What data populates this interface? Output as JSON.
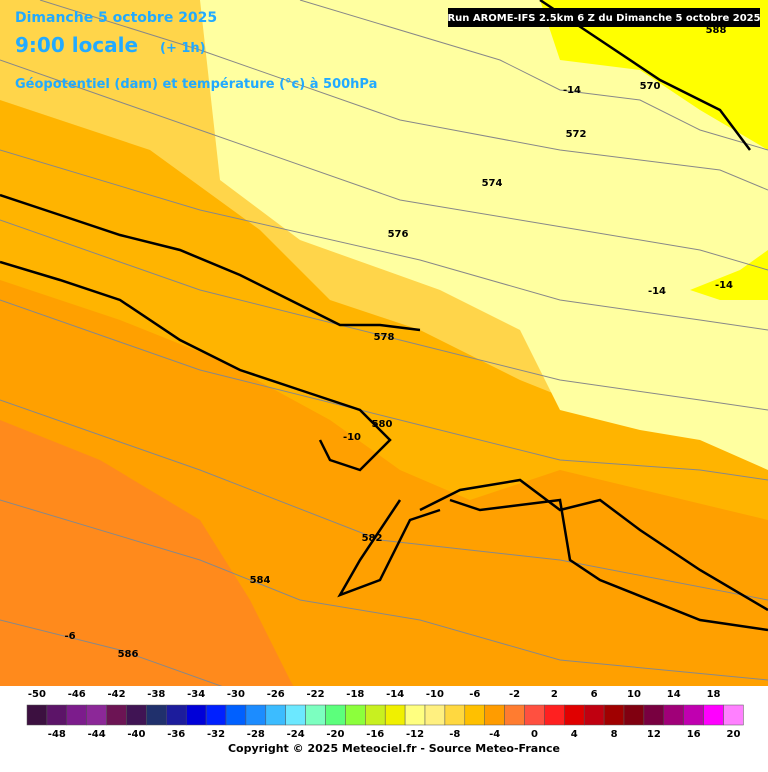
{
  "header": {
    "date": "Dimanche 5 octobre 2025",
    "time": "9:00 locale",
    "lead": "(+ 1h)",
    "field": "Géopotentiel (dam) et température (°c) à 500hPa",
    "run": "Run AROME-IFS 2.5km 6 Z du Dimanche 5 octobre 2025"
  },
  "map": {
    "labels": [
      "588",
      "-14",
      "570",
      "572",
      "574",
      "576",
      "-14",
      "-14",
      "578",
      "580",
      "-10",
      "582",
      "584",
      "-6",
      "586"
    ]
  },
  "legend": {
    "values": [
      -50,
      -48,
      -46,
      -44,
      -42,
      -40,
      -38,
      -36,
      -34,
      -32,
      -30,
      -28,
      -26,
      -24,
      -22,
      -20,
      -18,
      -16,
      -14,
      -12,
      -10,
      -8,
      -6,
      -4,
      -2,
      0,
      2,
      4,
      6,
      8,
      10,
      12,
      14,
      16,
      18,
      20
    ],
    "colors": [
      "#3c1040",
      "#5c1468",
      "#7c1c8c",
      "#8c2898",
      "#6c1454",
      "#401454",
      "#20306c",
      "#1c1c9c",
      "#0000d8",
      "#0020ff",
      "#0060ff",
      "#1c8cff",
      "#3cbcff",
      "#6ce8ff",
      "#7cffc0",
      "#5cff7c",
      "#8cff3c",
      "#c8f020",
      "#f0f000",
      "#ffff80",
      "#fff080",
      "#ffd840",
      "#ffc000",
      "#ff9c00",
      "#ff7c30",
      "#ff5040",
      "#ff2020",
      "#e00000",
      "#c00010",
      "#a00000",
      "#800010",
      "#780040",
      "#a00078",
      "#c000b0",
      "#ff00ff",
      "#ff80ff"
    ]
  },
  "footer": "Copyright © 2025 Meteociel.fr - Source Meteo-France"
}
